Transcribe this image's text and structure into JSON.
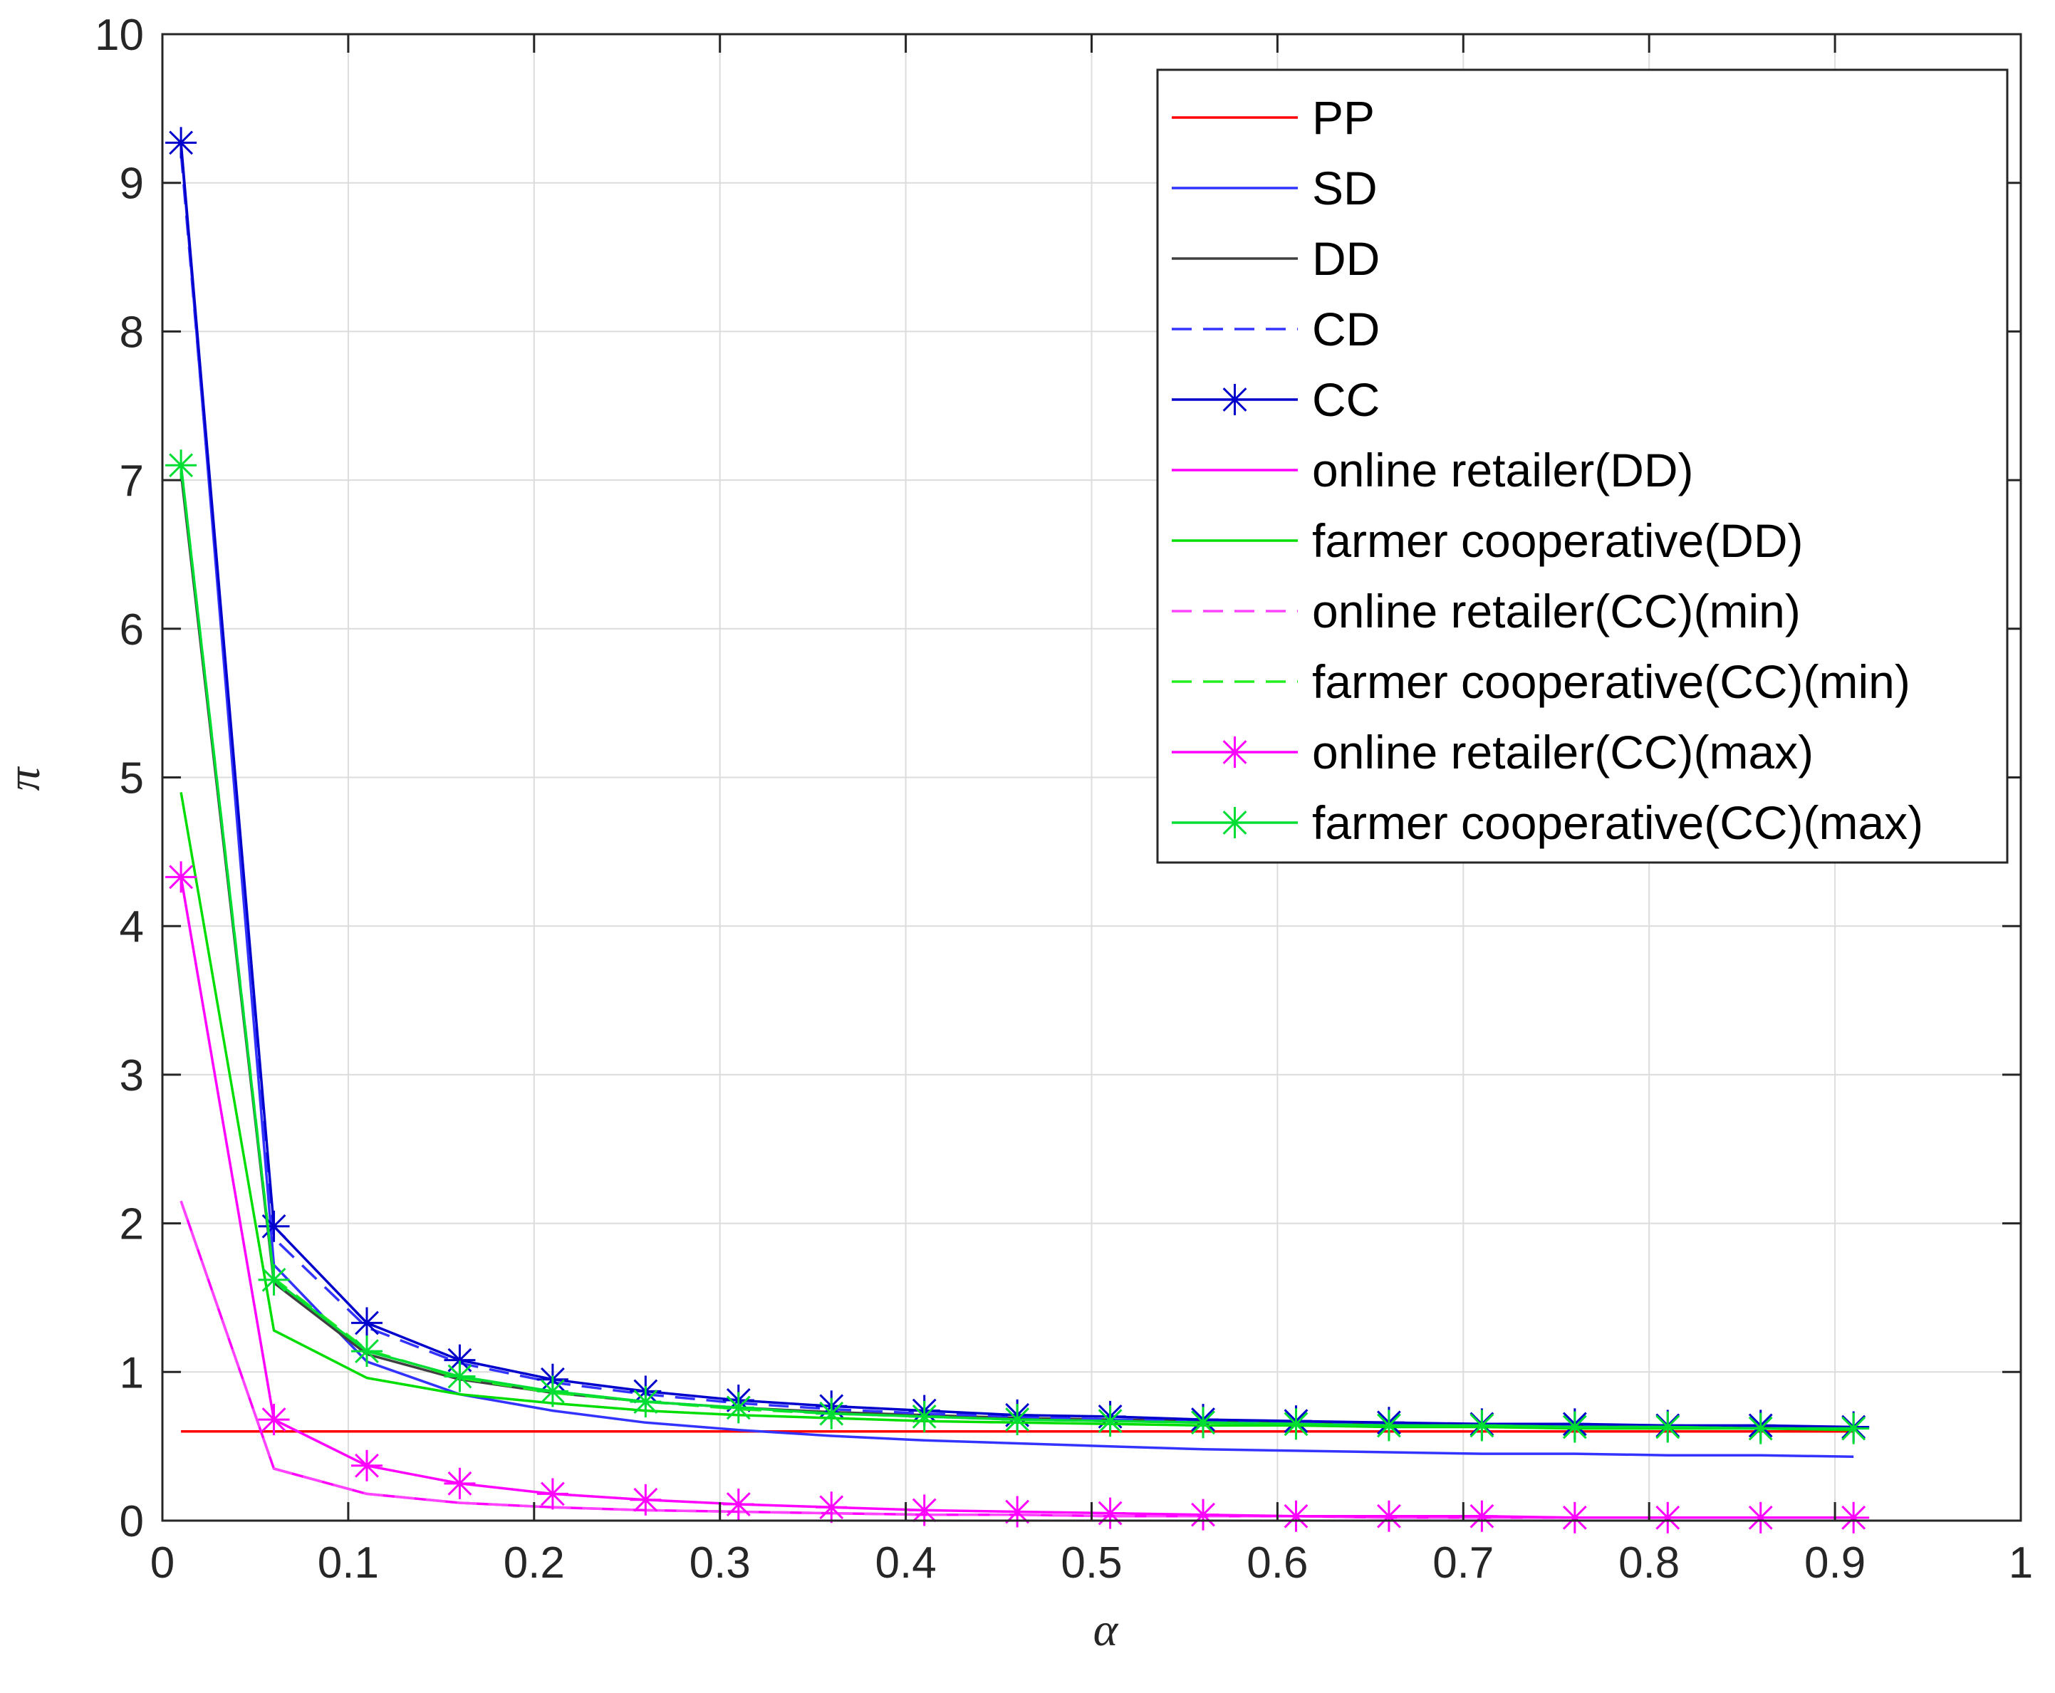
{
  "chart_data": {
    "type": "line",
    "title": "",
    "xlabel": "α",
    "ylabel": "π",
    "xlim": [
      0,
      1
    ],
    "ylim": [
      0,
      10
    ],
    "xticks": [
      "0",
      "0.1",
      "0.2",
      "0.3",
      "0.4",
      "0.5",
      "0.6",
      "0.7",
      "0.8",
      "0.9",
      "1"
    ],
    "yticks": [
      "0",
      "1",
      "2",
      "3",
      "4",
      "5",
      "6",
      "7",
      "8",
      "9",
      "10"
    ],
    "grid": true,
    "legend_position": "top-right",
    "x": [
      0.01,
      0.06,
      0.11,
      0.16,
      0.21,
      0.26,
      0.31,
      0.36,
      0.41,
      0.46,
      0.51,
      0.56,
      0.61,
      0.66,
      0.71,
      0.76,
      0.81,
      0.86,
      0.91
    ],
    "series": [
      {
        "name": "PP",
        "color": "#ff0000",
        "dash": false,
        "marker": false,
        "values": [
          0.6,
          0.6,
          0.6,
          0.6,
          0.6,
          0.6,
          0.6,
          0.6,
          0.6,
          0.6,
          0.6,
          0.6,
          0.6,
          0.6,
          0.6,
          0.6,
          0.6,
          0.6,
          0.6
        ]
      },
      {
        "name": "SD",
        "color": "#3333ff",
        "dash": false,
        "marker": false,
        "values": [
          9.25,
          1.72,
          1.07,
          0.85,
          0.74,
          0.66,
          0.61,
          0.57,
          0.54,
          0.52,
          0.5,
          0.48,
          0.47,
          0.46,
          0.45,
          0.45,
          0.44,
          0.44,
          0.43
        ]
      },
      {
        "name": "DD",
        "color": "#404040",
        "dash": false,
        "marker": false,
        "values": [
          7.05,
          1.6,
          1.12,
          0.95,
          0.86,
          0.8,
          0.76,
          0.73,
          0.71,
          0.69,
          0.68,
          0.67,
          0.66,
          0.65,
          0.64,
          0.64,
          0.63,
          0.63,
          0.62
        ]
      },
      {
        "name": "CD",
        "color": "#3333ff",
        "dash": true,
        "marker": false,
        "values": [
          9.2,
          1.9,
          1.3,
          1.06,
          0.93,
          0.85,
          0.79,
          0.75,
          0.72,
          0.7,
          0.68,
          0.67,
          0.66,
          0.65,
          0.64,
          0.64,
          0.63,
          0.63,
          0.62
        ]
      },
      {
        "name": "CC",
        "color": "#0000cc",
        "dash": false,
        "marker": true,
        "values": [
          9.27,
          1.98,
          1.33,
          1.08,
          0.95,
          0.87,
          0.81,
          0.77,
          0.74,
          0.71,
          0.7,
          0.68,
          0.67,
          0.66,
          0.65,
          0.65,
          0.64,
          0.64,
          0.63
        ]
      },
      {
        "name": "online retailer(DD)",
        "color": "#ff00ff",
        "dash": false,
        "marker": false,
        "values": [
          2.15,
          0.35,
          0.18,
          0.12,
          0.09,
          0.07,
          0.06,
          0.05,
          0.04,
          0.04,
          0.03,
          0.03,
          0.03,
          0.02,
          0.02,
          0.02,
          0.02,
          0.02,
          0.02
        ]
      },
      {
        "name": "farmer cooperative(DD)",
        "color": "#00dd00",
        "dash": false,
        "marker": false,
        "values": [
          4.9,
          1.28,
          0.96,
          0.85,
          0.79,
          0.74,
          0.71,
          0.69,
          0.67,
          0.66,
          0.65,
          0.64,
          0.64,
          0.63,
          0.63,
          0.62,
          0.62,
          0.62,
          0.61
        ]
      },
      {
        "name": "online retailer(CC)(min)",
        "color": "#ff44ff",
        "dash": true,
        "marker": false,
        "values": [
          2.15,
          0.35,
          0.18,
          0.12,
          0.09,
          0.07,
          0.06,
          0.05,
          0.04,
          0.04,
          0.03,
          0.03,
          0.03,
          0.02,
          0.02,
          0.02,
          0.02,
          0.02,
          0.02
        ]
      },
      {
        "name": "farmer cooperative(CC)(min)",
        "color": "#22ee22",
        "dash": true,
        "marker": false,
        "values": [
          7.1,
          1.63,
          1.15,
          0.96,
          0.86,
          0.8,
          0.75,
          0.72,
          0.7,
          0.68,
          0.67,
          0.66,
          0.65,
          0.64,
          0.64,
          0.63,
          0.63,
          0.62,
          0.62
        ]
      },
      {
        "name": "online retailer(CC)(max)",
        "color": "#ff00ff",
        "dash": false,
        "marker": true,
        "values": [
          4.33,
          0.68,
          0.37,
          0.25,
          0.18,
          0.14,
          0.11,
          0.09,
          0.07,
          0.06,
          0.05,
          0.04,
          0.03,
          0.03,
          0.03,
          0.02,
          0.02,
          0.02,
          0.02
        ]
      },
      {
        "name": "farmer cooperative(CC)(max)",
        "color": "#00dd33",
        "dash": false,
        "marker": true,
        "values": [
          7.1,
          1.62,
          1.14,
          0.97,
          0.87,
          0.8,
          0.76,
          0.72,
          0.7,
          0.68,
          0.67,
          0.66,
          0.65,
          0.64,
          0.64,
          0.63,
          0.63,
          0.62,
          0.62
        ]
      }
    ]
  }
}
